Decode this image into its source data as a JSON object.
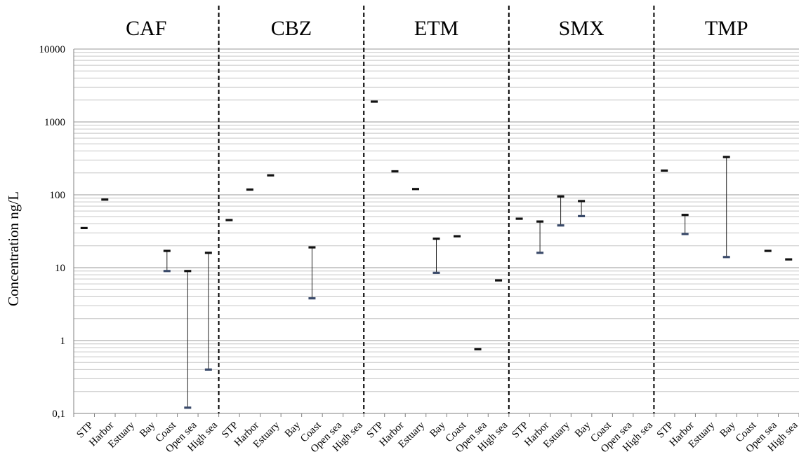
{
  "chart_data": {
    "type": "range",
    "ylabel": "Concentration ng/L",
    "yscale": "log",
    "ylim": [
      0.1,
      10000
    ],
    "yticks": [
      "0,1",
      "1",
      "10",
      "100",
      "1000",
      "10000"
    ],
    "categories": [
      "STP",
      "Harbor",
      "Estuary",
      "Bay",
      "Coast",
      "Open sea",
      "High sea"
    ],
    "grid": "minor-log-horizontal",
    "panels": [
      {
        "name": "CAF",
        "values": [
          [
            35,
            35
          ],
          [
            86,
            86
          ],
          null,
          null,
          [
            9,
            17
          ],
          [
            0.12,
            9
          ],
          [
            0.4,
            16
          ]
        ]
      },
      {
        "name": "CBZ",
        "values": [
          [
            45,
            45
          ],
          [
            118,
            118
          ],
          [
            185,
            185
          ],
          null,
          [
            3.8,
            19
          ],
          null,
          null
        ]
      },
      {
        "name": "ETM",
        "values": [
          [
            1900,
            1900
          ],
          [
            210,
            210
          ],
          [
            120,
            120
          ],
          [
            8.5,
            25
          ],
          [
            27,
            27
          ],
          [
            0.76,
            0.76
          ],
          [
            6.7,
            6.7
          ]
        ]
      },
      {
        "name": "SMX",
        "values": [
          [
            47,
            47
          ],
          [
            16,
            43
          ],
          [
            38,
            95
          ],
          [
            51,
            82
          ],
          null,
          null,
          null
        ]
      },
      {
        "name": "TMP",
        "values": [
          [
            215,
            215
          ],
          [
            29,
            53
          ],
          null,
          [
            14,
            330
          ],
          null,
          [
            17,
            17
          ],
          [
            13,
            13
          ]
        ]
      }
    ]
  }
}
